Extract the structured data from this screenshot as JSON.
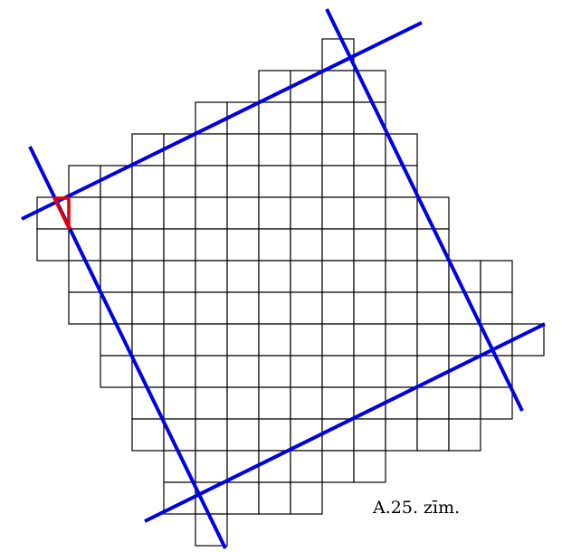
{
  "caption": "A.25. zīm.",
  "colors": {
    "grid": "#000000",
    "lines": "#0000e6",
    "triangle": "#e60000"
  }
}
